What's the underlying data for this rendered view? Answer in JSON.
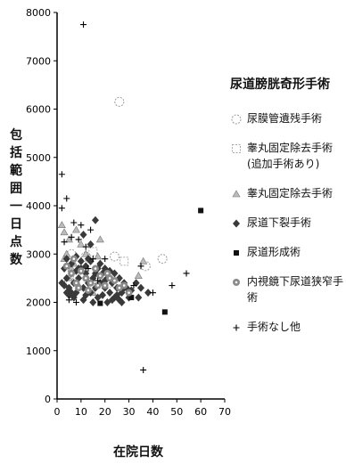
{
  "chart_data": {
    "type": "scatter",
    "title": "",
    "ylabel": "包括範囲一日点数",
    "xlabel": "在院日数",
    "xlim": [
      0,
      70
    ],
    "ylim": [
      0,
      8000
    ],
    "xticks": [
      "0",
      "10",
      "20",
      "30",
      "40",
      "50",
      "60",
      "70"
    ],
    "yticks": [
      "0",
      "1000",
      "2000",
      "3000",
      "4000",
      "5000",
      "6000",
      "7000",
      "8000"
    ],
    "grid": false,
    "legend_position": "right",
    "legend_title": "尿道膀胱奇形手術",
    "series": [
      {
        "name": "尿膜管遺残手術",
        "marker": "open-circle",
        "points": [
          [
            26,
            6150
          ],
          [
            5,
            2450
          ],
          [
            8,
            2600
          ],
          [
            12,
            2950
          ],
          [
            17,
            2450
          ],
          [
            24,
            2950
          ],
          [
            44,
            2900
          ],
          [
            37,
            2750
          ],
          [
            6,
            3000
          ]
        ]
      },
      {
        "name": "睾丸固定除去手術(追加手術あり)",
        "marker": "open-square",
        "points": [
          [
            15,
            3050
          ],
          [
            22,
            2400
          ],
          [
            28,
            2850
          ]
        ]
      },
      {
        "name": "睾丸固定除去手術",
        "marker": "triangle",
        "points": [
          [
            2,
            3600
          ],
          [
            3,
            3450
          ],
          [
            5,
            3300
          ],
          [
            4,
            3000
          ],
          [
            6,
            2700
          ],
          [
            8,
            3500
          ],
          [
            10,
            3200
          ],
          [
            12,
            3000
          ],
          [
            7,
            2800
          ],
          [
            5,
            2500
          ],
          [
            3,
            2900
          ],
          [
            18,
            3300
          ],
          [
            15,
            2200
          ],
          [
            9,
            2350
          ],
          [
            36,
            2850
          ],
          [
            34,
            2550
          ],
          [
            17,
            2950
          ],
          [
            20,
            2650
          ]
        ]
      },
      {
        "name": "尿道下裂手術",
        "marker": "filled-diamond",
        "points": [
          [
            3,
            2700
          ],
          [
            4,
            2500
          ],
          [
            5,
            2300
          ],
          [
            6,
            2600
          ],
          [
            7,
            2400
          ],
          [
            8,
            2200
          ],
          [
            9,
            2500
          ],
          [
            10,
            2700
          ],
          [
            11,
            2300
          ],
          [
            12,
            2600
          ],
          [
            13,
            2400
          ],
          [
            14,
            2200
          ],
          [
            15,
            2500
          ],
          [
            16,
            2300
          ],
          [
            17,
            2700
          ],
          [
            18,
            2400
          ],
          [
            19,
            2600
          ],
          [
            20,
            2300
          ],
          [
            21,
            2500
          ],
          [
            22,
            2200
          ],
          [
            23,
            2400
          ],
          [
            24,
            2100
          ],
          [
            25,
            2300
          ],
          [
            26,
            2500
          ],
          [
            27,
            2200
          ],
          [
            28,
            2400
          ],
          [
            29,
            2300
          ],
          [
            31,
            2250
          ],
          [
            33,
            2400
          ],
          [
            35,
            2300
          ],
          [
            38,
            2200
          ],
          [
            4,
            2900
          ],
          [
            6,
            2800
          ],
          [
            8,
            2950
          ],
          [
            10,
            2850
          ],
          [
            12,
            2750
          ],
          [
            14,
            2850
          ],
          [
            16,
            2600
          ],
          [
            18,
            2800
          ],
          [
            20,
            2700
          ],
          [
            22,
            2650
          ],
          [
            7,
            2100
          ],
          [
            11,
            2050
          ],
          [
            15,
            2000
          ],
          [
            19,
            2150
          ],
          [
            23,
            2050
          ],
          [
            27,
            2000
          ],
          [
            3,
            2350
          ],
          [
            5,
            2150
          ],
          [
            13,
            2900
          ],
          [
            9,
            2700
          ],
          [
            6,
            2200
          ],
          [
            12,
            2150
          ],
          [
            17,
            2100
          ],
          [
            21,
            2000
          ],
          [
            25,
            2150
          ],
          [
            30,
            2100
          ],
          [
            16,
            3700
          ],
          [
            14,
            3200
          ],
          [
            11,
            3400
          ],
          [
            8,
            2650
          ],
          [
            24,
            2600
          ],
          [
            28,
            2300
          ],
          [
            34,
            2100
          ],
          [
            26,
            2050
          ],
          [
            20,
            2450
          ],
          [
            2,
            2400
          ],
          [
            4,
            2200
          ]
        ]
      },
      {
        "name": "尿道形成術",
        "marker": "filled-square",
        "points": [
          [
            60,
            3900
          ],
          [
            45,
            1800
          ],
          [
            31,
            2100
          ],
          [
            18,
            1980
          ]
        ]
      },
      {
        "name": "内視鏡下尿道狭窄手術",
        "marker": "circle-dotted",
        "points": [
          [
            4,
            2750
          ],
          [
            6,
            2600
          ],
          [
            8,
            2400
          ],
          [
            10,
            2650
          ],
          [
            12,
            2500
          ],
          [
            14,
            2400
          ],
          [
            16,
            2700
          ],
          [
            18,
            2550
          ],
          [
            20,
            2350
          ],
          [
            22,
            2500
          ],
          [
            24,
            2450
          ],
          [
            26,
            2300
          ],
          [
            28,
            2350
          ],
          [
            30,
            2200
          ],
          [
            7,
            2900
          ],
          [
            9,
            2300
          ],
          [
            13,
            2250
          ],
          [
            17,
            2350
          ],
          [
            21,
            2600
          ]
        ]
      },
      {
        "name": "手術なし他",
        "marker": "plus",
        "points": [
          [
            11,
            7750
          ],
          [
            2,
            4650
          ],
          [
            2,
            3950
          ],
          [
            4,
            4150
          ],
          [
            7,
            3650
          ],
          [
            10,
            3600
          ],
          [
            14,
            3500
          ],
          [
            3,
            3250
          ],
          [
            6,
            3350
          ],
          [
            9,
            3300
          ],
          [
            12,
            3150
          ],
          [
            13,
            2700
          ],
          [
            15,
            2900
          ],
          [
            17,
            2450
          ],
          [
            20,
            2900
          ],
          [
            32,
            2350
          ],
          [
            35,
            2750
          ],
          [
            48,
            2350
          ],
          [
            54,
            2600
          ],
          [
            40,
            2200
          ],
          [
            36,
            600
          ],
          [
            5,
            2050
          ],
          [
            8,
            2000
          ]
        ]
      }
    ]
  }
}
